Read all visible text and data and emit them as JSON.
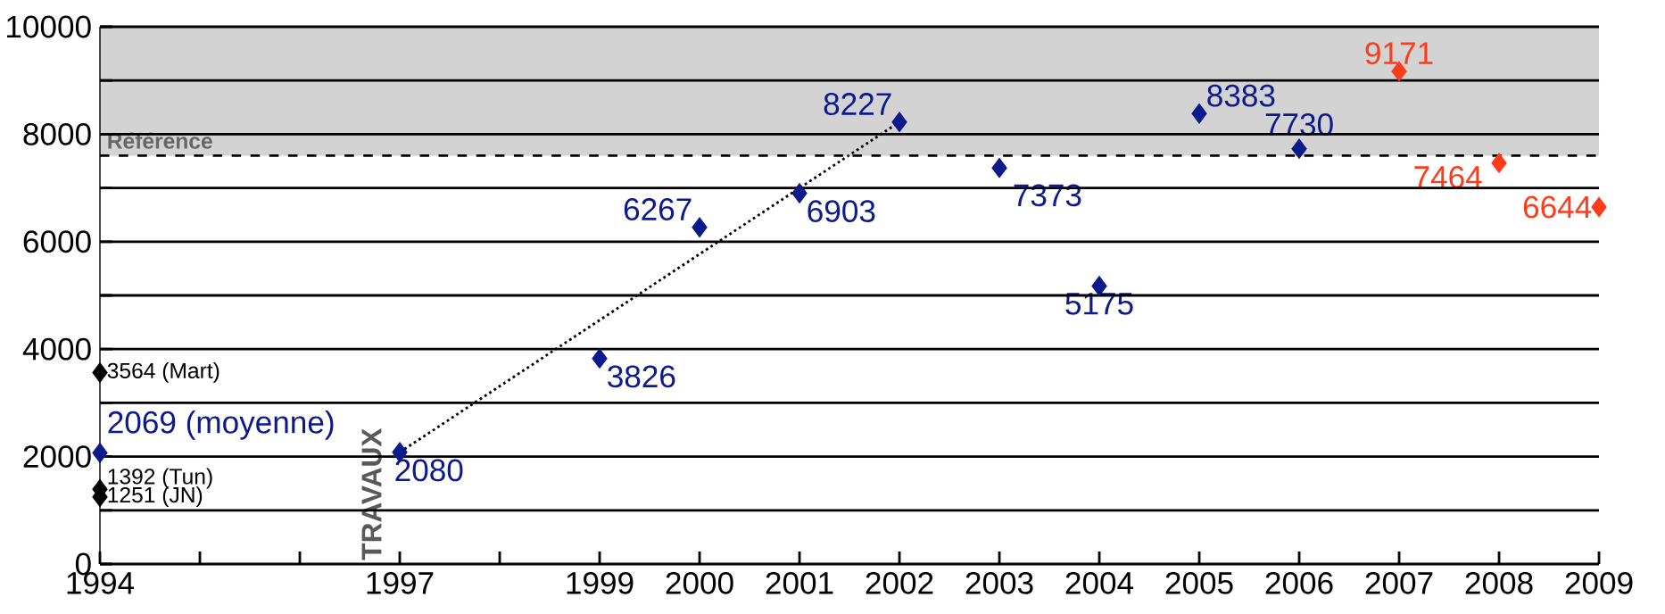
{
  "chart_data": {
    "type": "scatter",
    "marker": "diamond",
    "grid": "y",
    "xlim": [
      1994,
      2009
    ],
    "ylim": [
      0,
      10000
    ],
    "xticks": [
      1994,
      {
        "value": 1995,
        "label": null
      },
      {
        "value": 1996,
        "label": null
      },
      1997,
      {
        "value": 1998,
        "label": null
      },
      1999,
      2000,
      2001,
      2002,
      2003,
      2004,
      2005,
      2006,
      2007,
      2008,
      2009
    ],
    "yticks": [
      0,
      {
        "value": 1000,
        "label": null
      },
      2000,
      {
        "value": 3000,
        "label": null
      },
      4000,
      {
        "value": 5000,
        "label": null
      },
      6000,
      {
        "value": 7000,
        "label": null
      },
      8000,
      {
        "value": 9000,
        "label": null
      },
      10000
    ],
    "series": [
      {
        "color": "#000000",
        "x": [
          1994,
          1994,
          1994
        ],
        "values": [
          3564,
          1392,
          1251
        ],
        "value_labels": [
          "3564 (Mart)",
          "1392 (Tun)",
          "1251 (JN)"
        ]
      },
      {
        "type": "line",
        "line_style": "dotted",
        "marker": "none",
        "color": "#000000",
        "x": [
          1997,
          2002
        ],
        "values": [
          2080,
          8227
        ]
      },
      {
        "color": "#0d1a8c",
        "x": [
          1994,
          1997,
          1999,
          2000,
          2001,
          2002,
          2003,
          2004,
          2005,
          2006
        ],
        "values": [
          2069,
          2080,
          3826,
          6267,
          6903,
          8227,
          7373,
          5175,
          8383,
          7730
        ],
        "value_labels": [
          "2069 (moyenne)",
          "2080",
          "3826",
          "6267",
          "6903",
          "8227",
          "7373",
          "5175",
          "8383",
          "7730"
        ]
      },
      {
        "color": "#ff3b1a",
        "x": [
          2007,
          2008,
          2009
        ],
        "values": [
          9171,
          7464,
          6644
        ],
        "value_labels": [
          "9171",
          "7464",
          "6644"
        ]
      }
    ],
    "bands": [
      {
        "axis": "y",
        "from": 7600,
        "to": 10000,
        "label": "Référence",
        "color": "#d3d3d3"
      }
    ],
    "ref_lines": [
      {
        "axis": "y",
        "value": 7600,
        "color": "#000000",
        "line_style": "dashed"
      }
    ],
    "annotations": [
      "TRAVAUX"
    ]
  }
}
